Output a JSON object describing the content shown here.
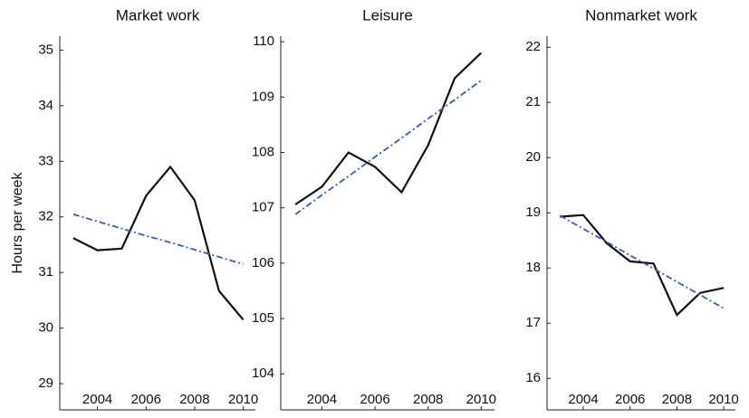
{
  "chart_data": [
    {
      "type": "line",
      "title": "Market work",
      "ylabel": "Hours per week",
      "x": [
        2003,
        2004,
        2005,
        2006,
        2007,
        2008,
        2009,
        2010
      ],
      "series": [
        {
          "color": "#111111",
          "linestyle": "solid",
          "values": [
            31.62,
            31.4,
            31.43,
            32.38,
            32.9,
            32.3,
            30.67,
            30.15
          ]
        },
        {
          "color": "#3b5bab",
          "linestyle": "dashdot",
          "values": [
            32.05,
            31.92,
            31.79,
            31.66,
            31.54,
            31.41,
            31.28,
            31.15
          ]
        }
      ],
      "xlim": [
        2002.45,
        2010.5
      ],
      "xticks": [
        2004,
        2006,
        2008,
        2010
      ],
      "ylim": [
        28.53,
        35.25
      ],
      "yticks": [
        29,
        30,
        31,
        32,
        33,
        34,
        35
      ]
    },
    {
      "type": "line",
      "title": "Leisure",
      "x": [
        2003,
        2004,
        2005,
        2006,
        2007,
        2008,
        2009,
        2010
      ],
      "series": [
        {
          "color": "#111111",
          "linestyle": "solid",
          "values": [
            107.06,
            107.38,
            108.0,
            107.74,
            107.28,
            108.13,
            109.34,
            109.8
          ]
        },
        {
          "color": "#3b5bab",
          "linestyle": "dashdot",
          "values": [
            106.88,
            107.23,
            107.57,
            107.92,
            108.26,
            108.61,
            108.95,
            109.3
          ]
        }
      ],
      "xlim": [
        2002.45,
        2010.5
      ],
      "xticks": [
        2004,
        2006,
        2008,
        2010
      ],
      "ylim": [
        103.35,
        110.1
      ],
      "yticks": [
        104,
        105,
        106,
        107,
        108,
        109,
        110
      ]
    },
    {
      "type": "line",
      "title": "Nonmarket work",
      "x": [
        2003,
        2004,
        2005,
        2006,
        2007,
        2008,
        2009,
        2010
      ],
      "series": [
        {
          "color": "#111111",
          "linestyle": "solid",
          "values": [
            18.93,
            18.96,
            18.45,
            18.12,
            18.08,
            17.15,
            17.55,
            17.64
          ]
        },
        {
          "color": "#3b5bab",
          "linestyle": "dashdot",
          "values": [
            18.95,
            18.71,
            18.47,
            18.23,
            17.99,
            17.75,
            17.51,
            17.27
          ]
        }
      ],
      "xlim": [
        2002.45,
        2010.5
      ],
      "xticks": [
        2004,
        2006,
        2008,
        2010
      ],
      "ylim": [
        15.43,
        22.2
      ],
      "yticks": [
        16,
        17,
        18,
        19,
        20,
        21,
        22
      ]
    }
  ]
}
